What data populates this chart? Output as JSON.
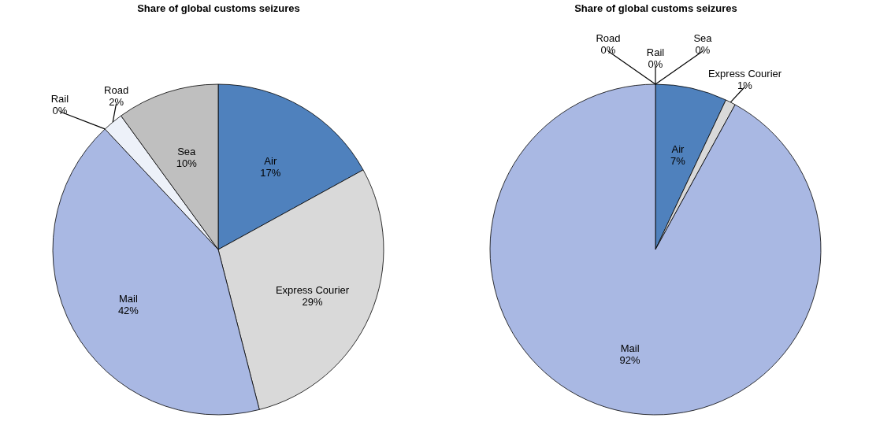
{
  "chart_data": [
    {
      "type": "pie",
      "title": "Share of global customs seizures",
      "categories": [
        "Air",
        "Express Courier",
        "Mail",
        "Rail",
        "Road",
        "Sea"
      ],
      "values": [
        17,
        29,
        42,
        0,
        2,
        10
      ],
      "value_labels": [
        "17%",
        "29%",
        "42%",
        "0%",
        "2%",
        "10%"
      ],
      "colors": [
        "#4f81bd",
        "#d9d9d9",
        "#a9b8e3",
        "#000000",
        "#edf1f9",
        "#bfbfbf"
      ]
    },
    {
      "type": "pie",
      "title": "Share of global customs seizures",
      "categories": [
        "Air",
        "Express Courier",
        "Mail",
        "Road",
        "Rail",
        "Sea"
      ],
      "values": [
        7,
        1,
        92,
        0,
        0,
        0
      ],
      "value_labels": [
        "7%",
        "1%",
        "92%",
        "0%",
        "0%",
        "0%"
      ],
      "colors": [
        "#4f81bd",
        "#d9d9d9",
        "#a9b8e3",
        "#edf1f9",
        "#000000",
        "#bfbfbf"
      ]
    }
  ]
}
